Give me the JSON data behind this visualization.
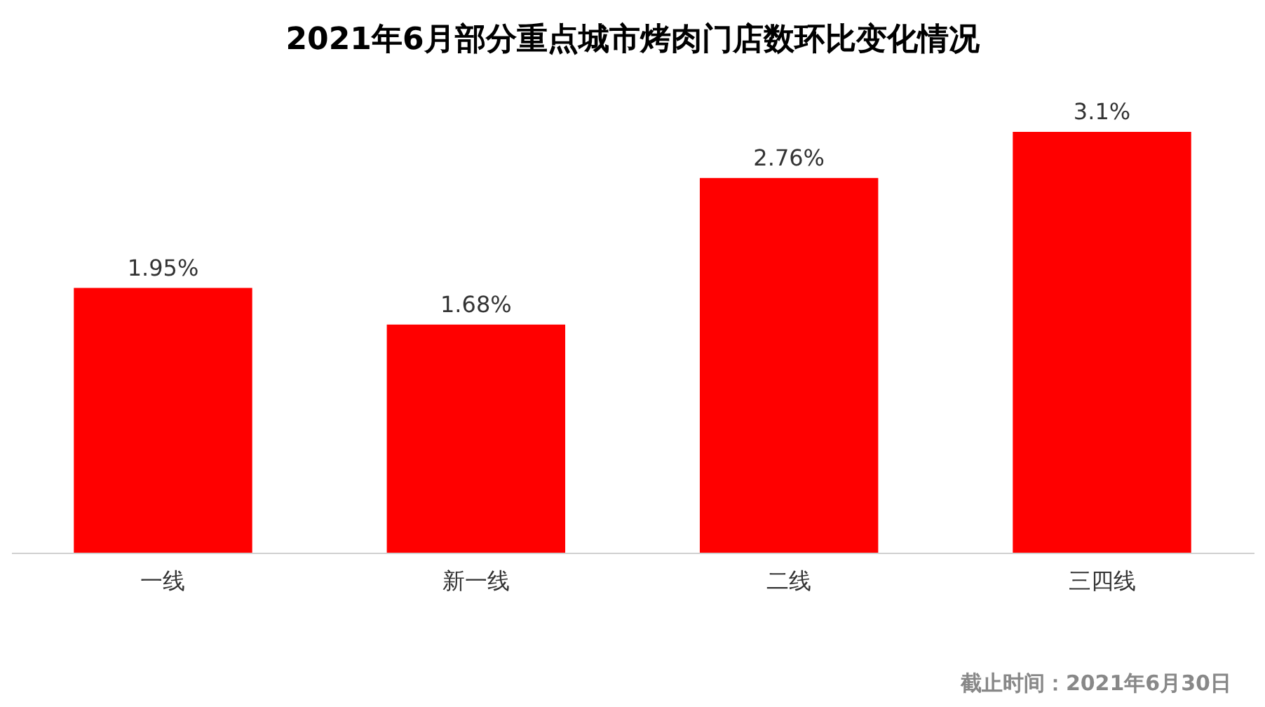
{
  "chart_data": {
    "type": "bar",
    "title": "2021年6月部分重点城市烤肉门店数环比变化情况",
    "categories": [
      "一线",
      "新一线",
      "二线",
      "三四线"
    ],
    "values": [
      1.95,
      1.68,
      2.76,
      3.1
    ],
    "value_labels": [
      "1.95%",
      "1.68%",
      "2.76%",
      "3.1%"
    ],
    "color": "#ff0000",
    "annotations": [
      "截止时间：2021年6月30日"
    ]
  }
}
